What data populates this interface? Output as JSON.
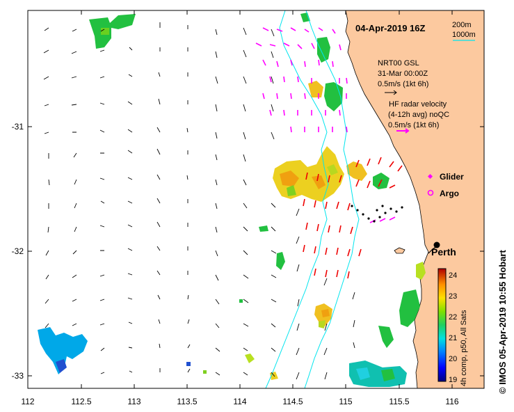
{
  "map": {
    "title": "04-Apr-2019 16Z",
    "x_ticks": [
      "112",
      "112.5",
      "113",
      "113.5",
      "114",
      "114.5",
      "115",
      "115.5",
      "116"
    ],
    "y_ticks": [
      "-31",
      "-32",
      "-33"
    ],
    "lon_range": [
      112,
      116.3
    ],
    "lat_range": [
      -33.1,
      -30.1
    ],
    "contours": {
      "c200": "200m",
      "c1000": "1000m"
    },
    "model_legend": {
      "line1": "NRT00 GSL",
      "line2": "31-Mar 00:00Z",
      "line3": "0.5m/s (1kt 6h)"
    },
    "hf_legend": {
      "line1": "HF radar velocity",
      "line2": "(4-12h avg) noQC",
      "line3": "0.5m/s (1kt 6h)"
    },
    "glider_label": "Glider",
    "argo_label": "Argo",
    "city_label": "Perth",
    "colorbar": {
      "ticks": [
        "24",
        "23",
        "22",
        "21",
        "20",
        "19"
      ],
      "label": "4h comp, p50, All Sats",
      "range": [
        19,
        24.4
      ]
    },
    "credit": "© IMOS 05-Apr-2019 10:55 Hobart"
  },
  "colors": {
    "land": "#fcc99f",
    "contour": "#00e5ee",
    "hf_vectors": "#ff00ff",
    "model_vectors": "#000000",
    "extra_vectors": "#ee0000"
  }
}
